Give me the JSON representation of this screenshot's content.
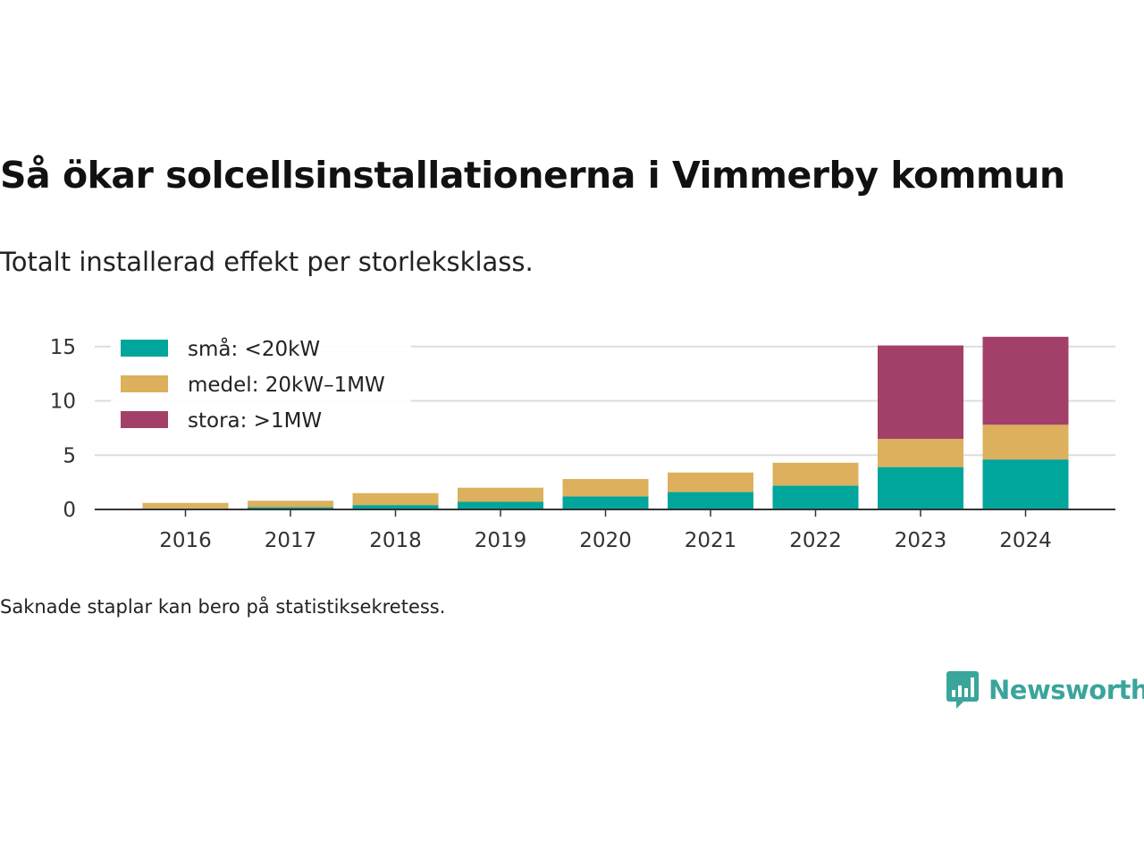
{
  "title": "Så ökar solcellsinstallationerna i Vimmerby kommun",
  "subtitle": "Totalt installerad effekt per storleksklass.",
  "note": "Saknade staplar kan bero på statistiksekretess.",
  "brand": {
    "name": "Newsworthy",
    "color": "#3aa59b"
  },
  "chart_data": {
    "type": "bar",
    "stacked": true,
    "title": "",
    "xlabel": "",
    "ylabel": "",
    "categories": [
      "2016",
      "2017",
      "2018",
      "2019",
      "2020",
      "2021",
      "2022",
      "2023",
      "2024"
    ],
    "series": [
      {
        "name": "små: <20kW",
        "color": "#00a69c",
        "values": [
          0.1,
          0.2,
          0.4,
          0.7,
          1.2,
          1.6,
          2.2,
          3.9,
          4.6
        ]
      },
      {
        "name": "medel: 20kW–1MW",
        "color": "#dcb05c",
        "values": [
          0.5,
          0.6,
          1.1,
          1.3,
          1.6,
          1.8,
          2.1,
          2.6,
          3.2
        ]
      },
      {
        "name": "stora: >1MW",
        "color": "#a3406a",
        "values": [
          0,
          0,
          0,
          0,
          0,
          0,
          0,
          8.6,
          8.1
        ]
      }
    ],
    "ylim": [
      0,
      16
    ],
    "yticks": [
      0,
      5,
      10,
      15
    ],
    "grid": true,
    "legend_position": "top-left"
  }
}
